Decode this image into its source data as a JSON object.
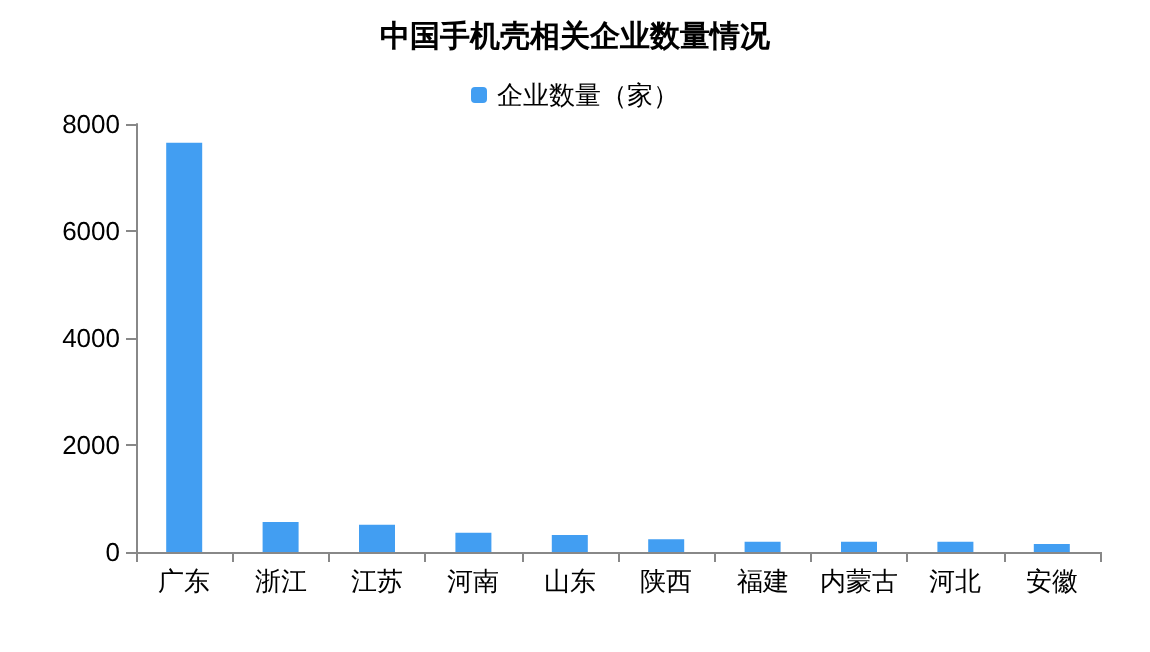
{
  "chart_data": {
    "type": "bar",
    "title": "中国手机壳相关企业数量情况",
    "categories": [
      "广东",
      "浙江",
      "江苏",
      "河南",
      "山东",
      "陕西",
      "福建",
      "内蒙古",
      "河北",
      "安徽"
    ],
    "series": [
      {
        "name": "企业数量（家）",
        "color": "#429ef2",
        "values": [
          7650,
          560,
          510,
          360,
          320,
          240,
          190,
          190,
          190,
          150
        ]
      }
    ],
    "ylim": [
      0,
      8000
    ],
    "yticks": [
      0,
      2000,
      4000,
      6000,
      8000
    ],
    "grid": false,
    "legend": "top"
  }
}
